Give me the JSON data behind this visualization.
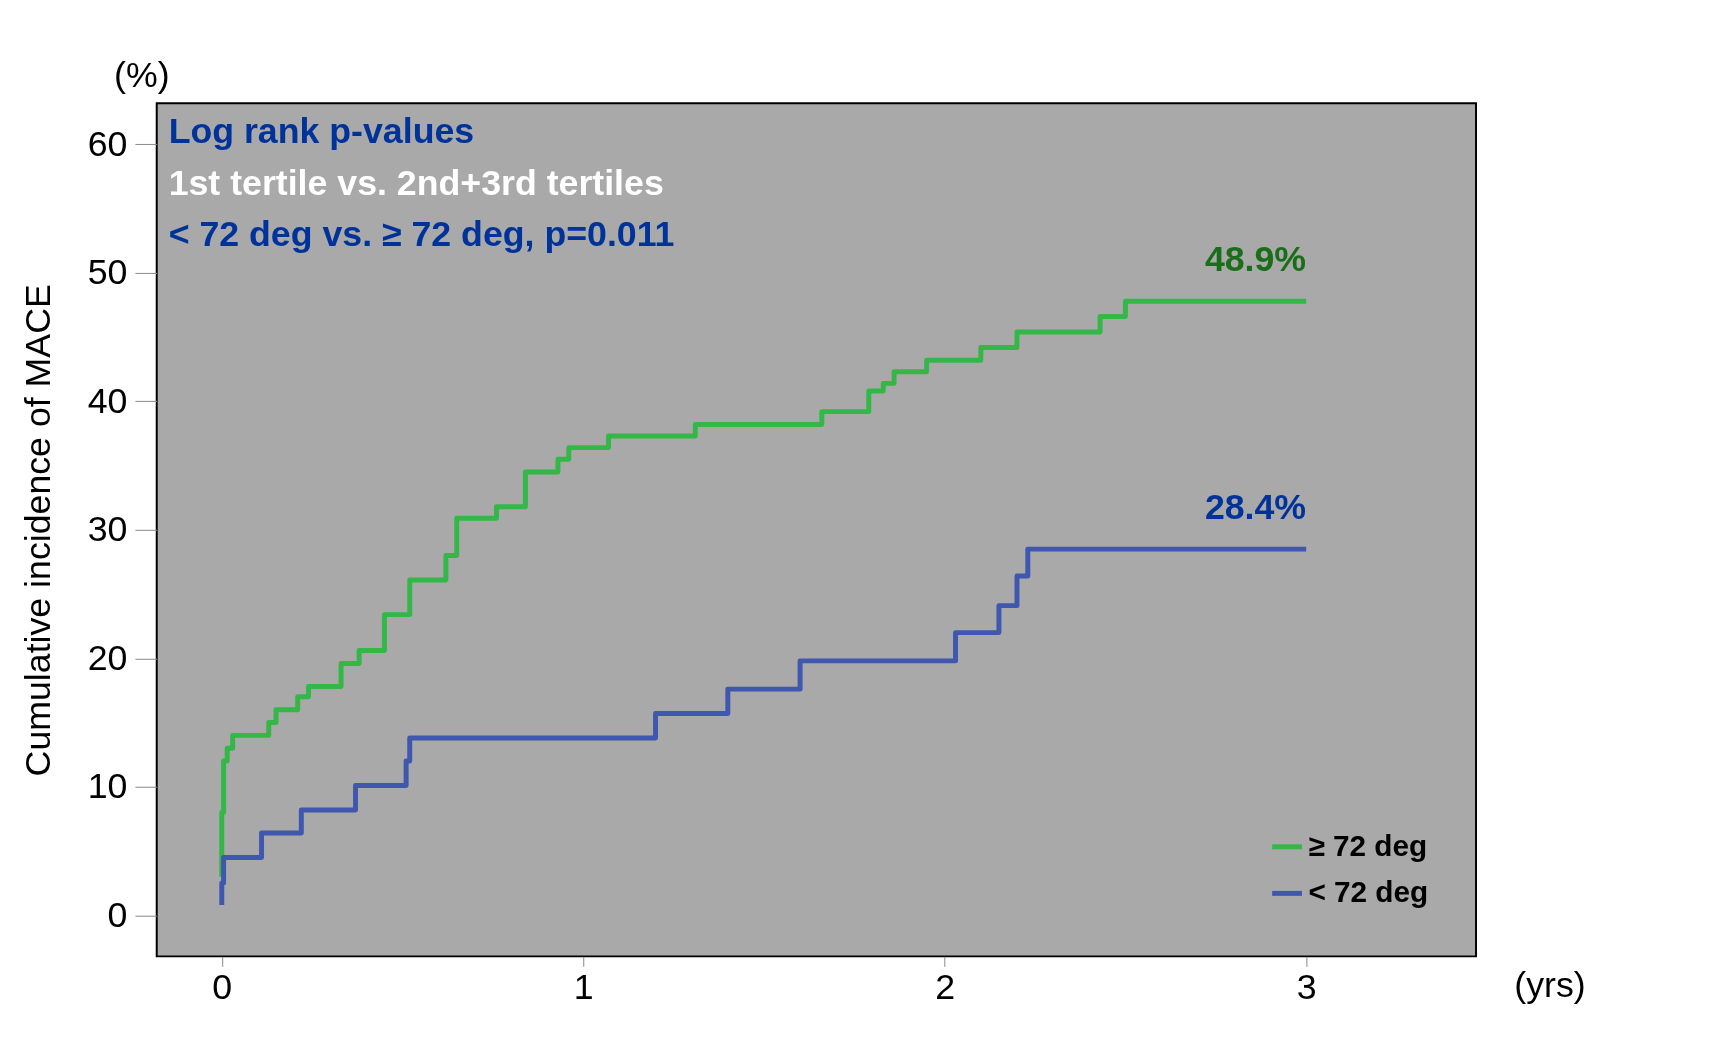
{
  "chart_data": {
    "type": "step",
    "xlabel": "(yrs)",
    "ylabel": "Cumulative incidence of MACE",
    "annotations": [
      "(%)",
      "Log rank p-values",
      "1st tertile vs. 2nd+3rd tertiles",
      "< 72 deg  vs. ≥ 72 deg, p=0.011",
      {
        "text": "48.9%",
        "x": 3,
        "y": 47.8
      },
      {
        "text": "28.4%",
        "x": 3,
        "y": 28.5
      }
    ],
    "series": [
      {
        "name": "≥ 72 deg",
        "color": "#33b847",
        "x": [
          0,
          0,
          0.005,
          0.015,
          0.03,
          0.13,
          0.15,
          0.21,
          0.24,
          0.33,
          0.38,
          0.45,
          0.52,
          0.62,
          0.65,
          0.76,
          0.84,
          0.93,
          0.96,
          1.07,
          1.31,
          1.66,
          1.79,
          1.83,
          1.86,
          1.95,
          2.1,
          2.2,
          2.43,
          2.5,
          3.0
        ],
        "values": [
          3,
          8,
          12,
          13,
          14,
          15,
          16,
          17,
          17.8,
          19.6,
          20.6,
          23.4,
          26.1,
          28,
          30.9,
          31.8,
          34.5,
          35.5,
          36.4,
          37.3,
          38.2,
          39.2,
          40.8,
          41.4,
          42.3,
          43.2,
          44.2,
          45.4,
          46.6,
          47.8,
          47.8
        ]
      },
      {
        "name": "< 72 deg",
        "color": "#3f57ae",
        "x": [
          0,
          0,
          0.005,
          0.11,
          0.22,
          0.37,
          0.51,
          0.52,
          1.2,
          1.4,
          1.6,
          2.03,
          2.15,
          2.2,
          2.23,
          3.0
        ],
        "values": [
          0.8,
          2.5,
          4.5,
          6.4,
          8.2,
          10.1,
          12,
          13.8,
          15.7,
          17.6,
          19.8,
          22.0,
          24.1,
          26.4,
          28.5,
          28.5
        ]
      }
    ],
    "xlim": [
      -0.18,
      3.47
    ],
    "xticks": [
      0,
      1,
      2,
      3
    ],
    "ylim": [
      -3.2,
      63.2
    ],
    "yticks": [
      0,
      10,
      20,
      30,
      40,
      50,
      60
    ],
    "grid": false,
    "legend": "bottom right",
    "line_style": "solid",
    "marker": "none"
  }
}
